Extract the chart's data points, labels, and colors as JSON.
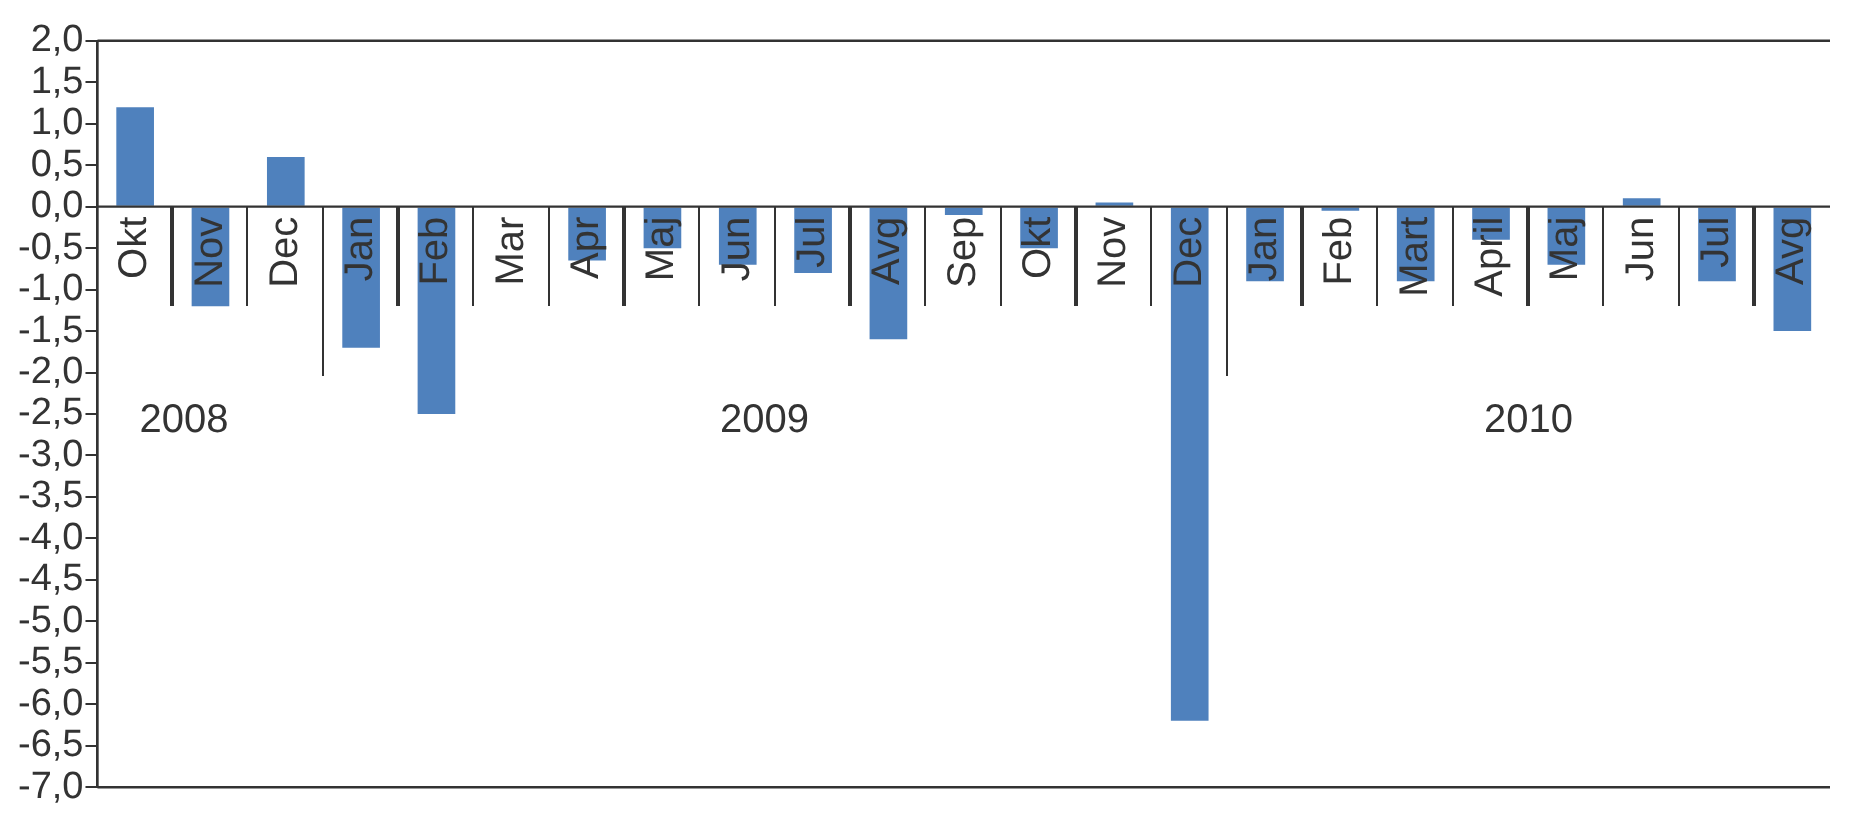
{
  "chart_data": {
    "type": "bar",
    "categories": [
      "Okt",
      "Nov",
      "Dec",
      "Jan",
      "Feb",
      "Mar",
      "Apr",
      "Maj",
      "Jun",
      "Jul",
      "Avg",
      "Sep",
      "Okt",
      "Nov",
      "Dec",
      "Jan",
      "Feb",
      "Mart",
      "April",
      "Maj",
      "Jun",
      "Jul",
      "Avg"
    ],
    "values": [
      1.2,
      -1.2,
      0.6,
      -1.7,
      -2.5,
      0,
      -0.65,
      -0.5,
      -0.7,
      -0.8,
      -1.6,
      -0.1,
      -0.5,
      0.05,
      -6.2,
      -0.9,
      -0.05,
      -0.9,
      -0.4,
      -0.7,
      0.1,
      -0.9,
      -1.5
    ],
    "color": "#4f81bd",
    "ylim": [
      -7,
      2
    ],
    "yticks": [
      {
        "value": 2,
        "label": "2,0"
      },
      {
        "value": 1.5,
        "label": "1,5"
      },
      {
        "value": 1,
        "label": "1,0"
      },
      {
        "value": 0.5,
        "label": "0,5"
      },
      {
        "value": 0,
        "label": "0,0"
      },
      {
        "value": -0.5,
        "label": "-0,5"
      },
      {
        "value": -1,
        "label": "-1,0"
      },
      {
        "value": -1.5,
        "label": "-1,5"
      },
      {
        "value": -2,
        "label": "-2,0"
      },
      {
        "value": -2.5,
        "label": "-2,5"
      },
      {
        "value": -3,
        "label": "-3,0"
      },
      {
        "value": -3.5,
        "label": "-3,5"
      },
      {
        "value": -4,
        "label": "-4,0"
      },
      {
        "value": -4.5,
        "label": "-4,5"
      },
      {
        "value": -5,
        "label": "-5,0"
      },
      {
        "value": -5.5,
        "label": "-5,5"
      },
      {
        "value": -6,
        "label": "-6,0"
      },
      {
        "value": -6.5,
        "label": "-6,5"
      },
      {
        "value": -7,
        "label": "-7,0"
      }
    ],
    "annotations": [
      "2008",
      "2009",
      "2010"
    ],
    "grid": false,
    "legend": false
  }
}
